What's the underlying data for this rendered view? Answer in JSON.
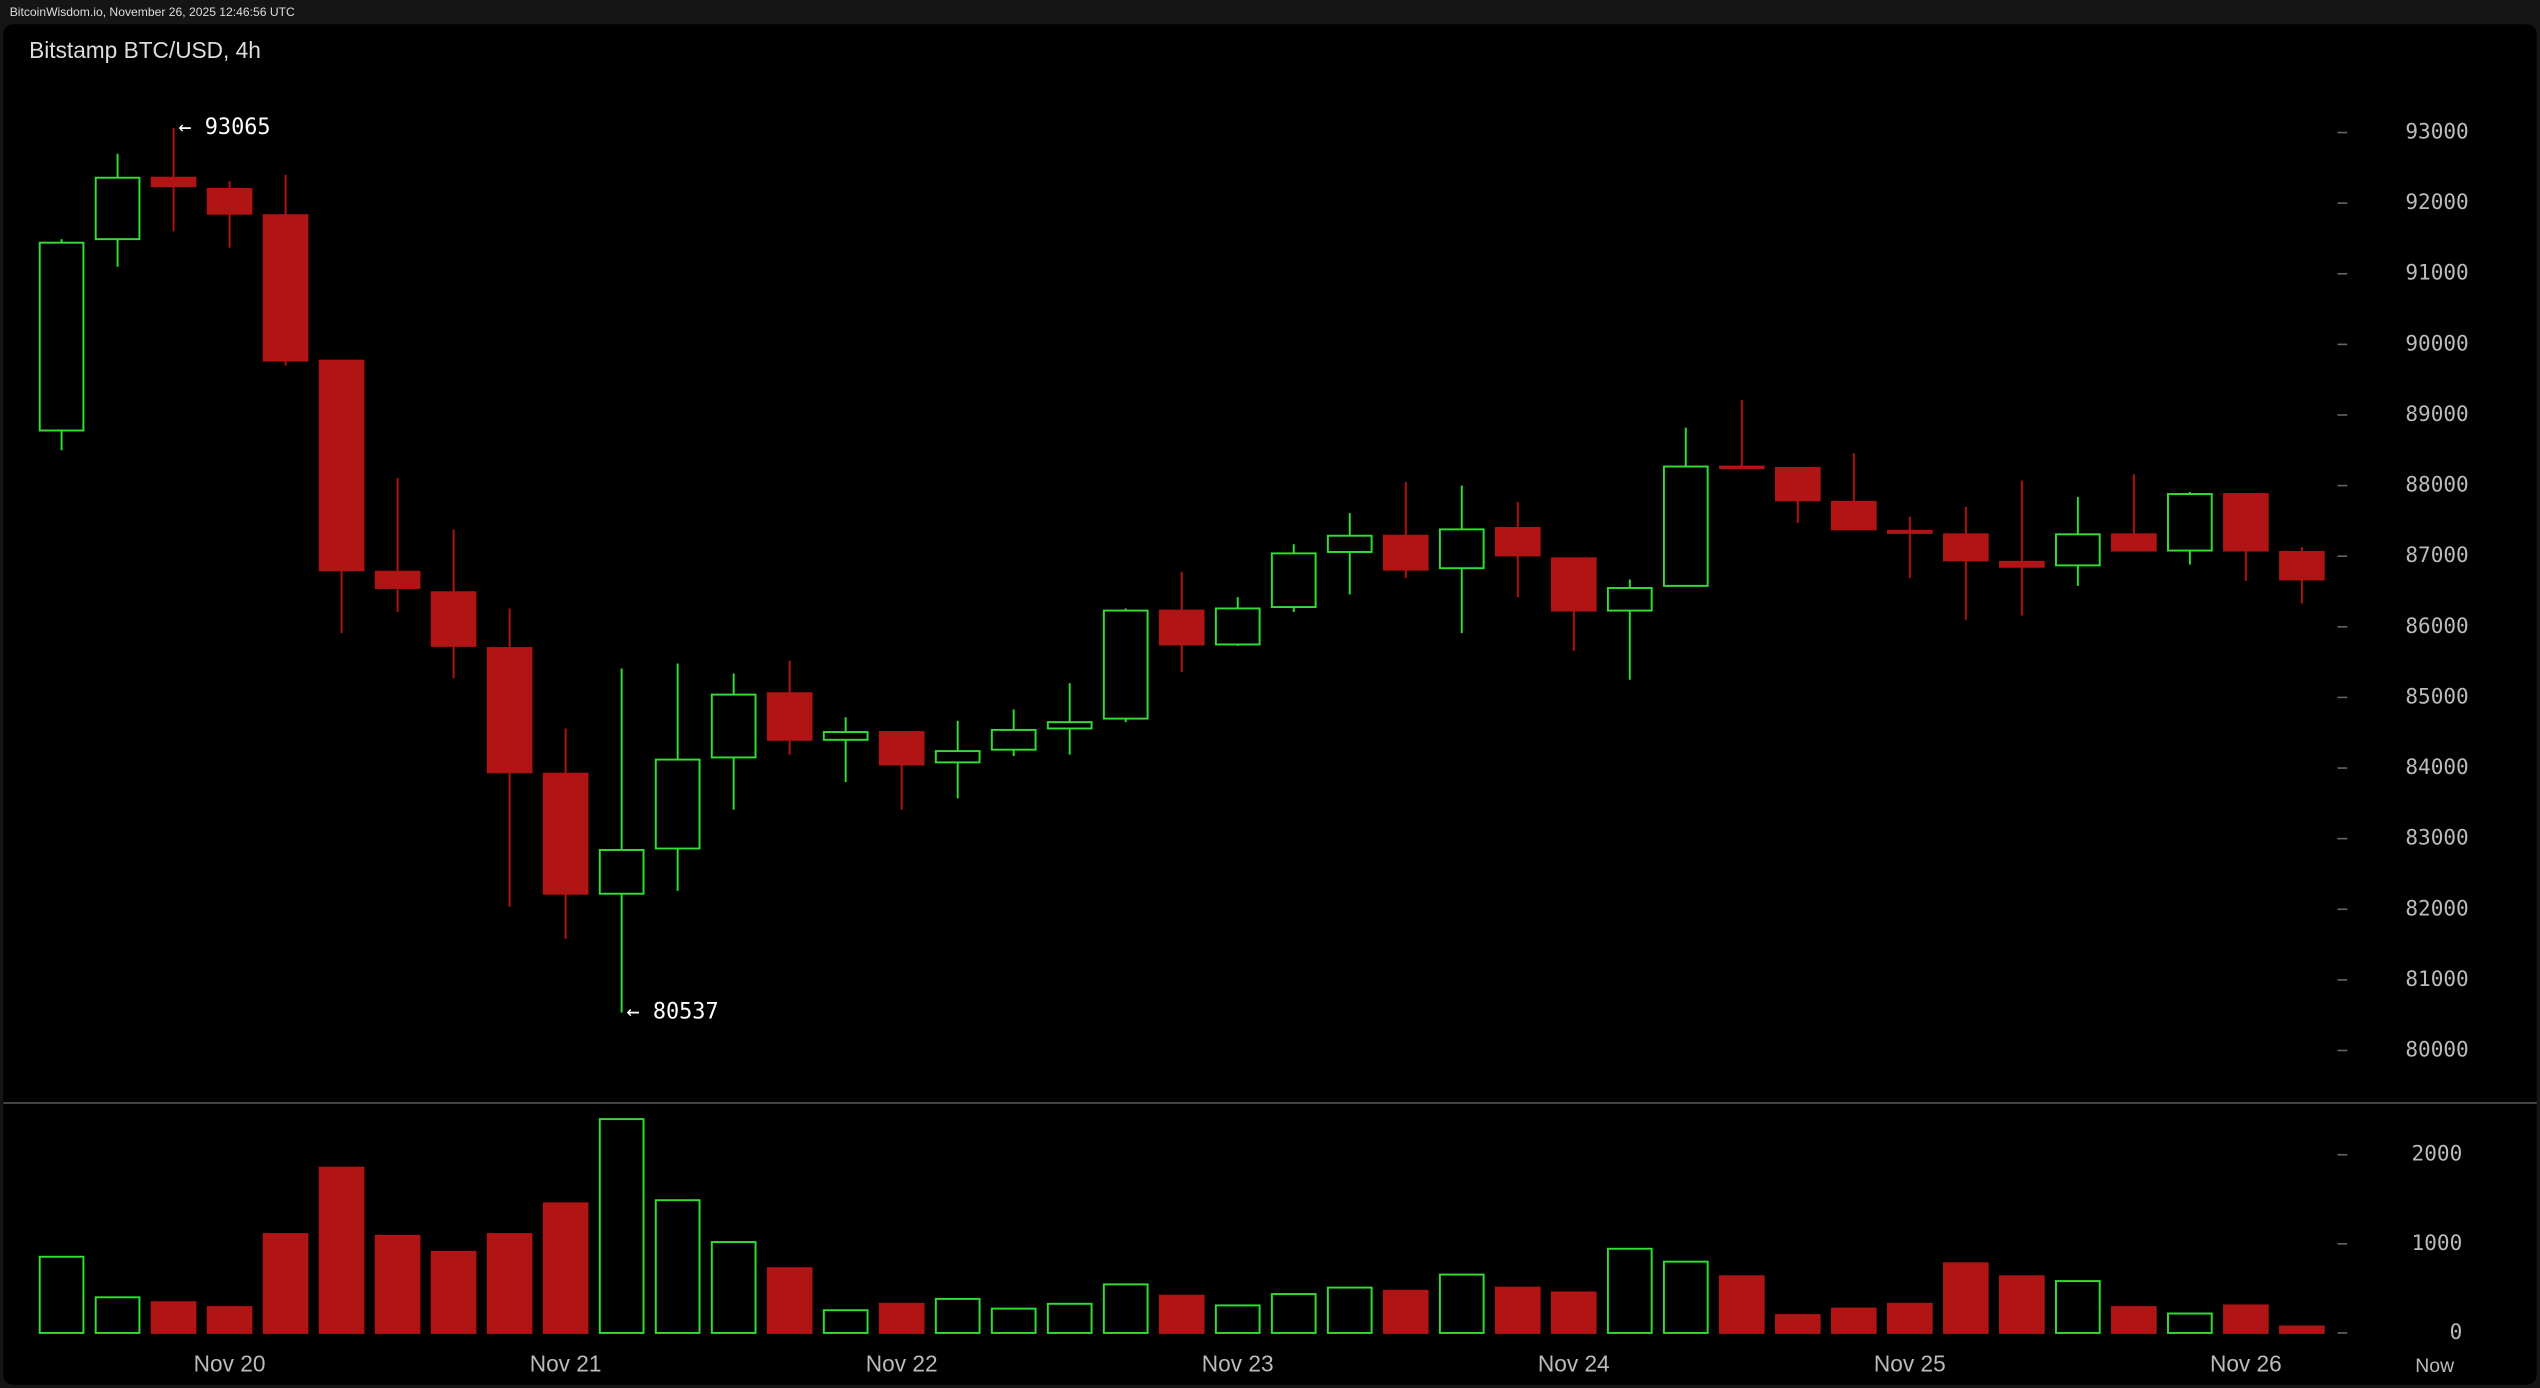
{
  "header": {
    "text": "BitcoinWisdom.io, November 26, 2025 12:46:56 UTC"
  },
  "chart_data": {
    "type": "candlestick",
    "title": "Bitstamp BTC/USD, 4h",
    "categories": [
      null,
      null,
      null,
      "Nov 20",
      null,
      null,
      null,
      null,
      null,
      "Nov 21",
      null,
      null,
      null,
      null,
      null,
      "Nov 22",
      null,
      null,
      null,
      null,
      null,
      "Nov 23",
      null,
      null,
      null,
      null,
      null,
      "Nov 24",
      null,
      null,
      null,
      null,
      null,
      "Nov 25",
      null,
      null,
      null,
      null,
      null,
      "Nov 26",
      null
    ],
    "x_end_label": "Now",
    "open": [
      88780,
      91490,
      92360,
      92200,
      91830,
      89770,
      86780,
      86490,
      85700,
      83920,
      82220,
      82860,
      84150,
      85060,
      84400,
      84510,
      84080,
      84260,
      84560,
      84700,
      86230,
      85750,
      86280,
      87060,
      87290,
      86830,
      87400,
      86970,
      86230,
      86580,
      88270,
      88250,
      87770,
      87360,
      87310,
      86920,
      86870,
      87310,
      87080,
      87880,
      87060
    ],
    "high": [
      91490,
      92700,
      93065,
      92310,
      92400,
      89770,
      88110,
      87380,
      86260,
      84560,
      85410,
      85480,
      85340,
      85520,
      84720,
      84510,
      84670,
      84830,
      85200,
      86260,
      86780,
      86420,
      87170,
      87610,
      88050,
      88000,
      87770,
      86970,
      86670,
      88820,
      89210,
      88250,
      88460,
      87560,
      87700,
      88070,
      87840,
      88160,
      87910,
      87880,
      87130
    ],
    "low": [
      88500,
      91100,
      91600,
      91370,
      89700,
      85910,
      86210,
      85270,
      82035,
      81580,
      80537,
      82260,
      83410,
      84190,
      83800,
      83410,
      83570,
      84170,
      84190,
      84650,
      85360,
      85730,
      86210,
      86460,
      86690,
      85910,
      86420,
      85660,
      85250,
      86580,
      88250,
      87470,
      87380,
      86690,
      86100,
      86160,
      86580,
      87080,
      86880,
      86650,
      86330
    ],
    "close": [
      91440,
      92360,
      92240,
      91850,
      89770,
      86800,
      86550,
      85730,
      83940,
      82220,
      82840,
      84120,
      85040,
      84400,
      84510,
      84050,
      84240,
      84540,
      84650,
      86230,
      85750,
      86260,
      87040,
      87290,
      86810,
      87380,
      87010,
      86230,
      86550,
      88270,
      88250,
      87790,
      87380,
      87330,
      86940,
      86850,
      87310,
      87080,
      87880,
      87080,
      86670
    ],
    "volume": [
      855,
      400,
      345,
      290,
      1110,
      1855,
      1090,
      910,
      1110,
      1455,
      2400,
      1490,
      1020,
      727,
      255,
      327,
      382,
      273,
      327,
      545,
      418,
      309,
      436,
      509,
      473,
      655,
      509,
      455,
      945,
      800,
      636,
      200,
      273,
      327,
      782,
      636,
      582,
      290,
      218,
      309,
      73
    ],
    "ylim": [
      79280,
      93730
    ],
    "yticks": [
      80000,
      81000,
      82000,
      83000,
      84000,
      85000,
      86000,
      87000,
      88000,
      89000,
      90000,
      91000,
      92000,
      93000
    ],
    "volume_ylim": [
      0,
      2545
    ],
    "volume_yticks": [
      0,
      1000,
      2000
    ],
    "up_color": "#33dd33",
    "down_color": "#b01414",
    "annotations": [
      {
        "label": "← 93065",
        "value": 93065
      },
      {
        "label": "← 80537",
        "value": 80537
      }
    ]
  }
}
